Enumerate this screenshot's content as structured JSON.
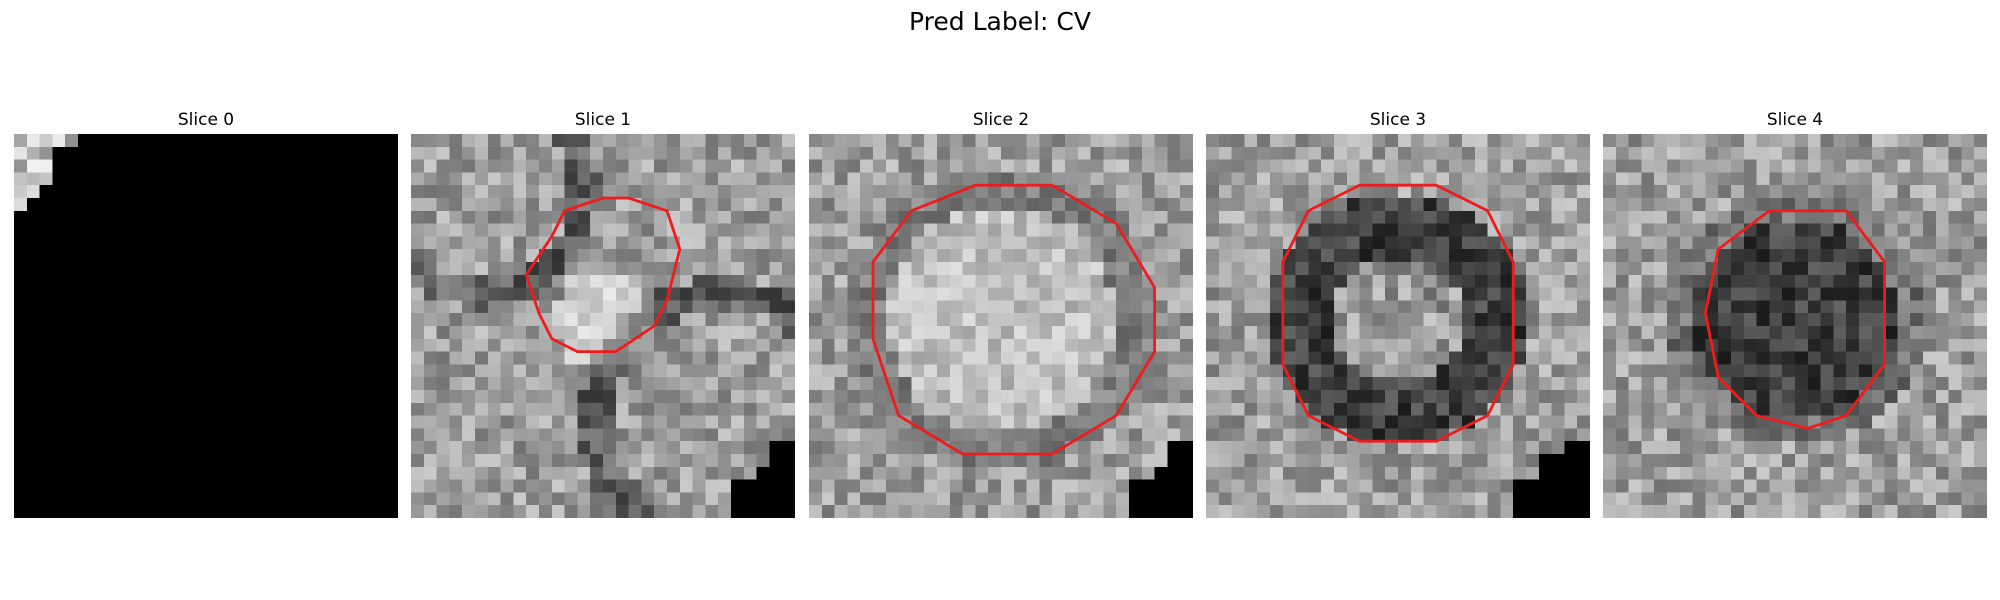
{
  "figure": {
    "title": "Pred Label: CV"
  },
  "panels": [
    {
      "title": "Slice 0",
      "seed": 7,
      "kind": "masked",
      "contour": null
    },
    {
      "title": "Slice 1",
      "seed": 11,
      "kind": "ring-small",
      "contour": [
        [
          15,
          5
        ],
        [
          17,
          5
        ],
        [
          20,
          6
        ],
        [
          21,
          9
        ],
        [
          20,
          13
        ],
        [
          19,
          15
        ],
        [
          16,
          17
        ],
        [
          13,
          17
        ],
        [
          11,
          16
        ],
        [
          10,
          14
        ],
        [
          9,
          11
        ],
        [
          11,
          8
        ],
        [
          12,
          6
        ]
      ]
    },
    {
      "title": "Slice 2",
      "seed": 23,
      "kind": "bright-disk",
      "contour": [
        [
          13,
          4
        ],
        [
          19,
          4
        ],
        [
          24,
          7
        ],
        [
          27,
          12
        ],
        [
          27,
          17
        ],
        [
          24,
          22
        ],
        [
          19,
          25
        ],
        [
          12,
          25
        ],
        [
          7,
          22
        ],
        [
          5,
          16
        ],
        [
          5,
          10
        ],
        [
          8,
          6
        ]
      ]
    },
    {
      "title": "Slice 3",
      "seed": 31,
      "kind": "dark-ring",
      "contour": [
        [
          12,
          4
        ],
        [
          18,
          4
        ],
        [
          22,
          6
        ],
        [
          24,
          10
        ],
        [
          24,
          18
        ],
        [
          22,
          22
        ],
        [
          18,
          24
        ],
        [
          12,
          24
        ],
        [
          8,
          22
        ],
        [
          6,
          18
        ],
        [
          6,
          10
        ],
        [
          8,
          6
        ]
      ]
    },
    {
      "title": "Slice 4",
      "seed": 47,
      "kind": "dark-blob",
      "contour": [
        [
          13,
          6
        ],
        [
          19,
          6
        ],
        [
          22,
          10
        ],
        [
          22,
          18
        ],
        [
          19,
          22
        ],
        [
          16,
          23
        ],
        [
          12,
          22
        ],
        [
          9,
          19
        ],
        [
          8,
          14
        ],
        [
          9,
          9
        ]
      ]
    }
  ],
  "colors": {
    "contour": "#ee1c1c",
    "background": "#ffffff"
  }
}
